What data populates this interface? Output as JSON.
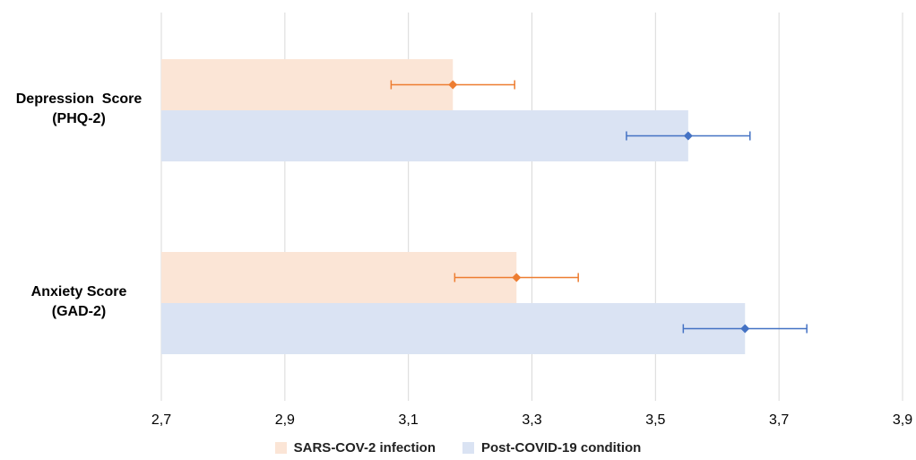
{
  "chart_data": {
    "type": "bar",
    "orientation": "horizontal",
    "categories": [
      "Depression  Score\n(PHQ-2)",
      "Anxiety Score\n(GAD-2)"
    ],
    "series": [
      {
        "name": "SARS-COV-2 infection",
        "values": [
          3.172,
          3.275
        ],
        "error": [
          0.1,
          0.1
        ],
        "bar_color": "#fbe5d6",
        "marker_color": "#ed7d31"
      },
      {
        "name": "Post-COVID-19 condition",
        "values": [
          3.553,
          3.645
        ],
        "error": [
          0.1,
          0.1
        ],
        "bar_color": "#dae3f3",
        "marker_color": "#4472c4"
      }
    ],
    "xlim": [
      2.7,
      3.9
    ],
    "xticks": [
      "2,7",
      "2,9",
      "3,1",
      "3,3",
      "3,5",
      "3,7",
      "3,9"
    ],
    "xtick_values": [
      2.7,
      2.9,
      3.1,
      3.3,
      3.5,
      3.7,
      3.9
    ],
    "grid": true,
    "legend_position": "bottom"
  }
}
